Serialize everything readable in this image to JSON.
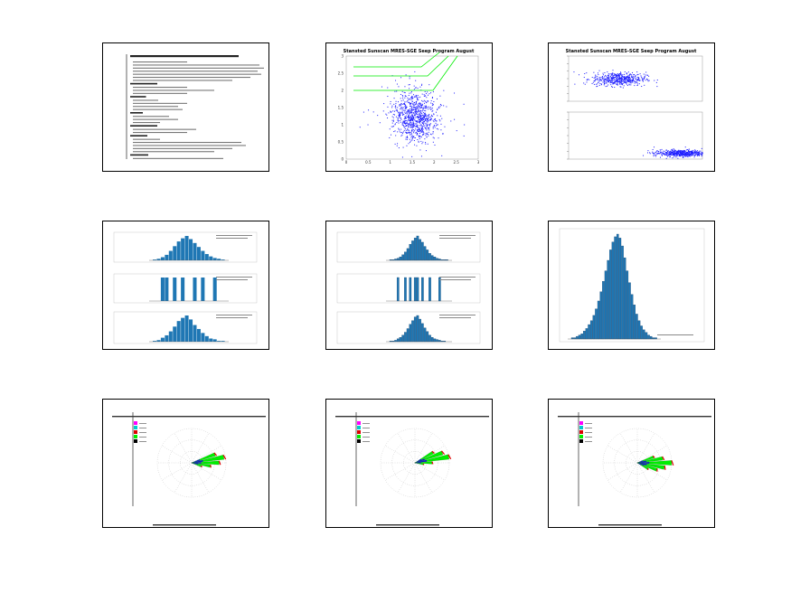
{
  "grid": {
    "rows": 3,
    "cols": 3
  },
  "panels": [
    {
      "kind": "text-report"
    },
    {
      "kind": "scatter",
      "title": "Stansted Sunscan MRES-SGE Seep Program August"
    },
    {
      "kind": "scatter-pair",
      "title": "Stansted Sunscan MRES-SGE Seep Program August"
    },
    {
      "kind": "hist-stack"
    },
    {
      "kind": "hist-stack"
    },
    {
      "kind": "hist-single"
    },
    {
      "kind": "polar"
    },
    {
      "kind": "polar"
    },
    {
      "kind": "polar"
    }
  ],
  "colors": {
    "scatter": "#1f1fff",
    "bar": "#1f77b4",
    "bar_dark": "#0b3c6b",
    "green": "#00ee00",
    "red": "#dd0000",
    "blue": "#1010cc",
    "magenta": "#ff00ff",
    "cyan": "#00cccc"
  },
  "chart_data": [
    {
      "type": "scatter",
      "title": "Stansted Sunscan MRES-SGE Seep Program August",
      "xlim": [
        0,
        3
      ],
      "ylim": [
        0,
        3
      ],
      "x_ticks": [
        0,
        0.5,
        1,
        1.5,
        2,
        2.5,
        3
      ],
      "y_ticks": [
        0,
        0.5,
        1,
        1.5,
        2,
        2.5,
        3
      ],
      "cluster_center": [
        1.55,
        1.25
      ],
      "cluster_spread": [
        0.25,
        0.35
      ],
      "point_count": 900
    },
    {
      "type": "scatter",
      "title": "Stansted Sunscan MRES-SGE Seep Program August",
      "subplots": [
        {
          "xlim": [
            0,
            1.2
          ],
          "ylim": [
            0,
            2
          ],
          "cluster_center": [
            0.45,
            1.0
          ],
          "point_count": 500
        },
        {
          "xlim": [
            0,
            6
          ],
          "ylim": [
            0,
            6
          ],
          "cluster_center": [
            5.0,
            0.8
          ],
          "point_count": 500
        }
      ]
    },
    {
      "type": "bar",
      "subplots": [
        {
          "values": [
            1,
            2,
            4,
            7,
            12,
            18,
            24,
            28,
            31,
            27,
            22,
            17,
            12,
            8,
            5,
            3,
            2,
            1
          ]
        },
        {
          "values": [
            0,
            0,
            1,
            1,
            0,
            1,
            0,
            1,
            0,
            0,
            1,
            0,
            1,
            0,
            0,
            1,
            0,
            0
          ]
        },
        {
          "values": [
            1,
            2,
            5,
            8,
            13,
            19,
            26,
            30,
            33,
            28,
            21,
            16,
            11,
            7,
            4,
            3,
            1,
            1
          ]
        }
      ]
    },
    {
      "type": "bar",
      "subplots": [
        {
          "values": [
            1,
            1,
            2,
            3,
            5,
            8,
            12,
            17,
            23,
            28,
            32,
            35,
            30,
            26,
            20,
            15,
            10,
            7,
            5,
            3,
            2,
            1,
            1,
            1
          ]
        },
        {
          "values": [
            0,
            0,
            0,
            1,
            0,
            0,
            1,
            0,
            1,
            0,
            1,
            1,
            0,
            1,
            0,
            0,
            1,
            0,
            0,
            0,
            1,
            0,
            0,
            0
          ]
        },
        {
          "values": [
            1,
            1,
            2,
            4,
            6,
            9,
            13,
            18,
            24,
            29,
            34,
            36,
            31,
            25,
            19,
            14,
            9,
            6,
            4,
            3,
            2,
            1,
            1,
            0
          ]
        }
      ]
    },
    {
      "type": "bar",
      "values": [
        1,
        1,
        2,
        3,
        4,
        6,
        8,
        11,
        14,
        18,
        23,
        29,
        36,
        44,
        52,
        60,
        68,
        74,
        78,
        80,
        77,
        71,
        62,
        52,
        43,
        34,
        26,
        19,
        14,
        10,
        7,
        5,
        3,
        2,
        1,
        1
      ]
    },
    {
      "type": "pie",
      "subtype": "polar-rose",
      "direction_bins": [
        {
          "angle": 70,
          "length": 0.72
        },
        {
          "angle": 80,
          "length": 0.95
        },
        {
          "angle": 90,
          "length": 0.8
        },
        {
          "angle": 100,
          "length": 0.55
        },
        {
          "angle": 110,
          "length": 0.3
        }
      ]
    },
    {
      "type": "pie",
      "subtype": "polar-rose",
      "direction_bins": [
        {
          "angle": 60,
          "length": 0.6
        },
        {
          "angle": 70,
          "length": 0.85
        },
        {
          "angle": 80,
          "length": 1.0
        },
        {
          "angle": 90,
          "length": 0.5
        },
        {
          "angle": 100,
          "length": 0.25
        }
      ]
    },
    {
      "type": "pie",
      "subtype": "polar-rose",
      "direction_bins": [
        {
          "angle": 70,
          "length": 0.5
        },
        {
          "angle": 80,
          "length": 0.75
        },
        {
          "angle": 90,
          "length": 1.0
        },
        {
          "angle": 100,
          "length": 0.8
        },
        {
          "angle": 110,
          "length": 0.6
        },
        {
          "angle": 120,
          "length": 0.35
        }
      ]
    }
  ]
}
